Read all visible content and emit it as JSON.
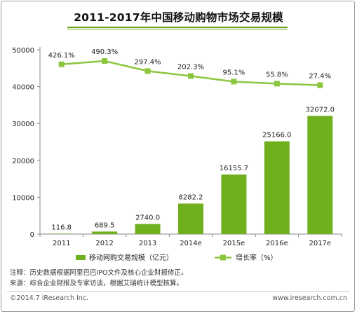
{
  "chart_data": {
    "type": "bar",
    "title": "2011-2017年中国移动购物市场交易规模",
    "categories": [
      "2011",
      "2012",
      "2013",
      "2014e",
      "2015e",
      "2016e",
      "2017e"
    ],
    "ylim": [
      0,
      50000
    ],
    "yticks": [
      0,
      10000,
      20000,
      30000,
      40000,
      50000
    ],
    "series": [
      {
        "name": "移动网购交易规模（亿元）",
        "type": "bar",
        "color": "#6fb01e",
        "values": [
          116.8,
          689.5,
          2740.0,
          8282.2,
          16155.7,
          25166.0,
          32072.0
        ],
        "labels": [
          "116.8",
          "689.5",
          "2740.0",
          "8282.2",
          "16155.7",
          "25166.0",
          "32072.0"
        ]
      },
      {
        "name": "增长率（%）",
        "type": "line",
        "color": "#8cc63f",
        "values": [
          426.1,
          490.3,
          297.4,
          202.3,
          95.1,
          55.8,
          27.4
        ],
        "labels": [
          "426.1%",
          "490.3%",
          "297.4%",
          "202.3%",
          "95.1%",
          "55.8%",
          "27.4%"
        ]
      }
    ],
    "grid": false,
    "legend": "bottom"
  },
  "notes": {
    "line1": "注释：历史数据根据阿里巴巴IPO文件及核心企业财报修正。",
    "line2": "来源：综合企业财报及专家访谈，根据艾瑞统计模型核算。"
  },
  "footer": {
    "copyright": "©2014.7 iResearch Inc.",
    "site": "www.iresearch.com.cn"
  }
}
